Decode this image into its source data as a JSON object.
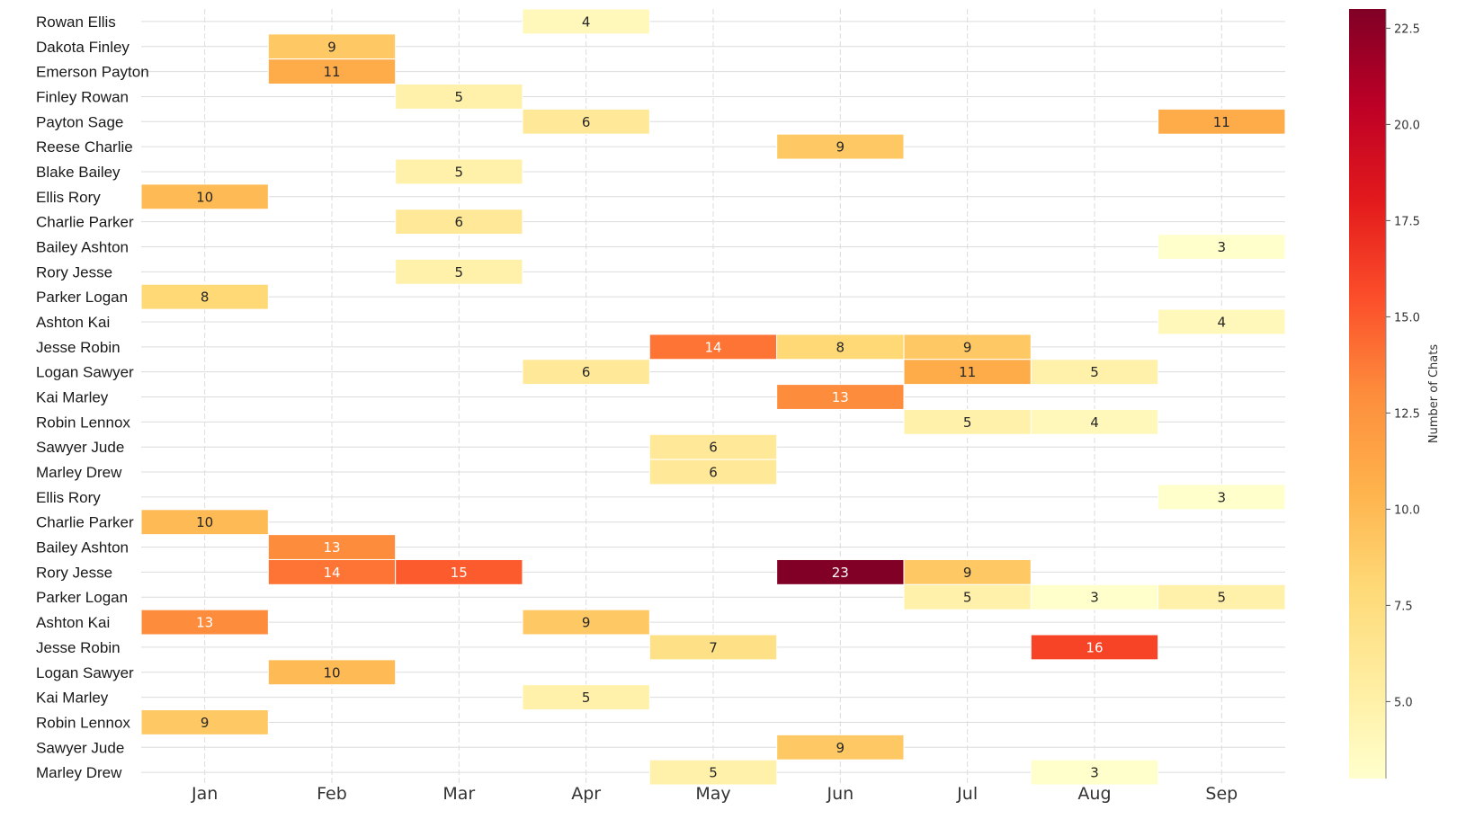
{
  "chart_data": {
    "type": "heatmap",
    "x": [
      "Jan",
      "Feb",
      "Mar",
      "Apr",
      "May",
      "Jun",
      "Jul",
      "Aug",
      "Sep"
    ],
    "y": [
      "Rowan Ellis",
      "Dakota Finley",
      "Emerson Payton",
      "Finley Rowan",
      "Payton Sage",
      "Reese Charlie",
      "Blake Bailey",
      "Ellis Rory",
      "Charlie Parker",
      "Bailey Ashton",
      "Rory Jesse",
      "Parker Logan",
      "Ashton Kai",
      "Jesse Robin",
      "Logan Sawyer",
      "Kai Marley",
      "Robin Lennox",
      "Sawyer Jude",
      "Marley Drew",
      "Ellis Rory",
      "Charlie Parker",
      "Bailey Ashton",
      "Rory Jesse",
      "Parker Logan",
      "Ashton Kai",
      "Jesse Robin",
      "Logan Sawyer",
      "Kai Marley",
      "Robin Lennox",
      "Sawyer Jude",
      "Marley Drew"
    ],
    "values": [
      [
        null,
        null,
        null,
        4,
        null,
        null,
        null,
        null,
        null
      ],
      [
        null,
        9,
        null,
        null,
        null,
        null,
        null,
        null,
        null
      ],
      [
        null,
        11,
        null,
        null,
        null,
        null,
        null,
        null,
        null
      ],
      [
        null,
        null,
        5,
        null,
        null,
        null,
        null,
        null,
        null
      ],
      [
        null,
        null,
        null,
        6,
        null,
        null,
        null,
        null,
        11
      ],
      [
        null,
        null,
        null,
        null,
        null,
        9,
        null,
        null,
        null
      ],
      [
        null,
        null,
        5,
        null,
        null,
        null,
        null,
        null,
        null
      ],
      [
        10,
        null,
        null,
        null,
        null,
        null,
        null,
        null,
        null
      ],
      [
        null,
        null,
        6,
        null,
        null,
        null,
        null,
        null,
        null
      ],
      [
        null,
        null,
        null,
        null,
        null,
        null,
        null,
        null,
        3
      ],
      [
        null,
        null,
        5,
        null,
        null,
        null,
        null,
        null,
        null
      ],
      [
        8,
        null,
        null,
        null,
        null,
        null,
        null,
        null,
        null
      ],
      [
        null,
        null,
        null,
        null,
        null,
        null,
        null,
        null,
        4
      ],
      [
        null,
        null,
        null,
        null,
        14,
        8,
        9,
        null,
        null
      ],
      [
        null,
        null,
        null,
        6,
        null,
        null,
        11,
        5,
        null
      ],
      [
        null,
        null,
        null,
        null,
        null,
        13,
        null,
        null,
        null
      ],
      [
        null,
        null,
        null,
        null,
        null,
        null,
        5,
        4,
        null
      ],
      [
        null,
        null,
        null,
        null,
        6,
        null,
        null,
        null,
        null
      ],
      [
        null,
        null,
        null,
        null,
        6,
        null,
        null,
        null,
        null
      ],
      [
        null,
        null,
        null,
        null,
        null,
        null,
        null,
        null,
        3
      ],
      [
        10,
        null,
        null,
        null,
        null,
        null,
        null,
        null,
        null
      ],
      [
        null,
        13,
        null,
        null,
        null,
        null,
        null,
        null,
        null
      ],
      [
        null,
        14,
        15,
        null,
        null,
        23,
        9,
        null,
        null
      ],
      [
        null,
        null,
        null,
        null,
        null,
        null,
        5,
        3,
        5
      ],
      [
        13,
        null,
        null,
        9,
        null,
        null,
        null,
        null,
        null
      ],
      [
        null,
        null,
        null,
        null,
        7,
        null,
        null,
        16,
        null
      ],
      [
        null,
        10,
        null,
        null,
        null,
        null,
        null,
        null,
        null
      ],
      [
        null,
        null,
        null,
        5,
        null,
        null,
        null,
        null,
        null
      ],
      [
        9,
        null,
        null,
        null,
        null,
        null,
        null,
        null,
        null
      ],
      [
        null,
        null,
        null,
        null,
        null,
        9,
        null,
        null,
        null
      ],
      [
        null,
        null,
        null,
        null,
        5,
        null,
        null,
        3,
        null
      ]
    ],
    "colorbar": {
      "label": "Number of Chats",
      "ticks": [
        "5.0",
        "7.5",
        "10.0",
        "12.5",
        "15.0",
        "17.5",
        "20.0",
        "22.5"
      ],
      "range": [
        3,
        23
      ],
      "colormap": "YlOrRd"
    },
    "grid": true
  }
}
